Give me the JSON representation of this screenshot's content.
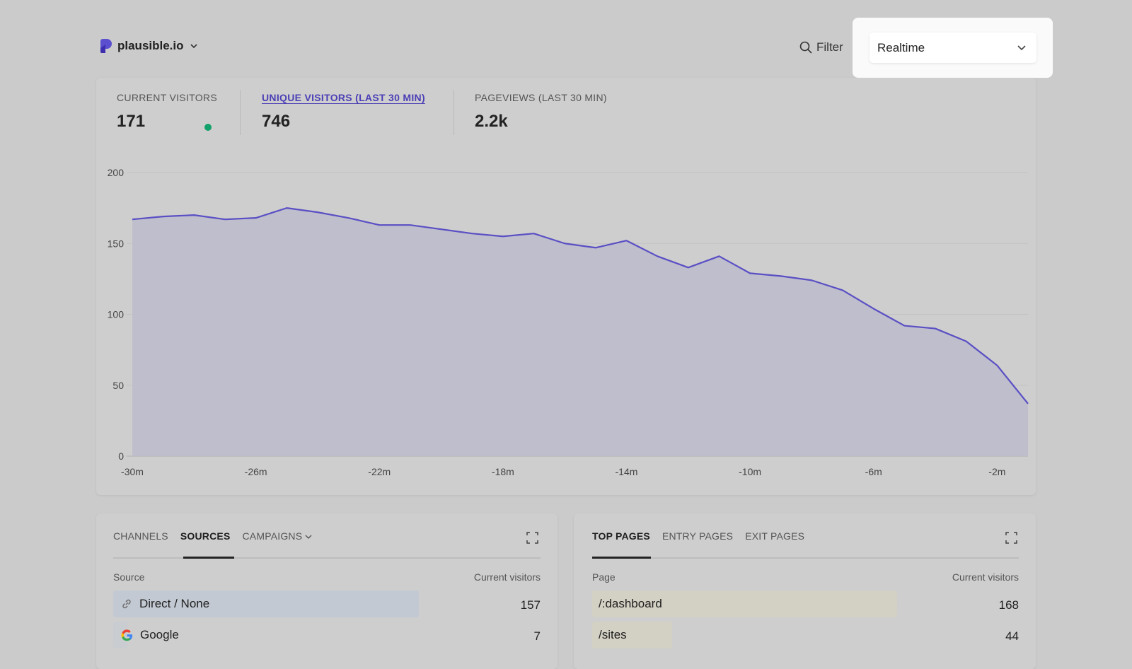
{
  "header": {
    "site": "plausible.io",
    "filter_label": "Filter",
    "period": "Realtime"
  },
  "stats": [
    {
      "label": "CURRENT VISITORS",
      "value": "171",
      "live": true
    },
    {
      "label": "UNIQUE VISITORS (LAST 30 MIN)",
      "value": "746",
      "active": true
    },
    {
      "label": "PAGEVIEWS (LAST 30 MIN)",
      "value": "2.2k"
    }
  ],
  "colors": {
    "accent": "#4b3fb6",
    "line": "#5a4fc4",
    "live": "#12a16a"
  },
  "chart_data": {
    "type": "area",
    "x": [
      "-30m",
      "-29m",
      "-28m",
      "-27m",
      "-26m",
      "-25m",
      "-24m",
      "-23m",
      "-22m",
      "-21m",
      "-20m",
      "-19m",
      "-18m",
      "-17m",
      "-16m",
      "-15m",
      "-14m",
      "-13m",
      "-12m",
      "-11m",
      "-10m",
      "-9m",
      "-8m",
      "-7m",
      "-6m",
      "-5m",
      "-4m",
      "-3m",
      "-2m",
      "-1m"
    ],
    "values": [
      167,
      169,
      170,
      167,
      168,
      175,
      172,
      168,
      163,
      163,
      160,
      157,
      155,
      157,
      150,
      147,
      152,
      141,
      133,
      141,
      129,
      127,
      124,
      117,
      104,
      92,
      90,
      81,
      64,
      37
    ],
    "x_ticks": [
      "-30m",
      "-26m",
      "-22m",
      "-18m",
      "-14m",
      "-10m",
      "-6m",
      "-2m"
    ],
    "y_ticks": [
      "0",
      "50",
      "100",
      "150",
      "200"
    ],
    "ylim": [
      0,
      200
    ],
    "grid": true
  },
  "sources": {
    "tabs": [
      "CHANNELS",
      "SOURCES",
      "CAMPAIGNS"
    ],
    "active": 1,
    "col1": "Source",
    "col2": "Current visitors",
    "rows": [
      {
        "name": "Direct / None",
        "value": "157",
        "icon": "link-icon"
      },
      {
        "name": "Google",
        "value": "7",
        "icon": "google-icon"
      }
    ]
  },
  "pages": {
    "tabs": [
      "TOP PAGES",
      "ENTRY PAGES",
      "EXIT PAGES"
    ],
    "active": 0,
    "col1": "Page",
    "col2": "Current visitors",
    "rows": [
      {
        "name": "/:dashboard",
        "value": "168"
      },
      {
        "name": "/sites",
        "value": "44"
      }
    ]
  }
}
